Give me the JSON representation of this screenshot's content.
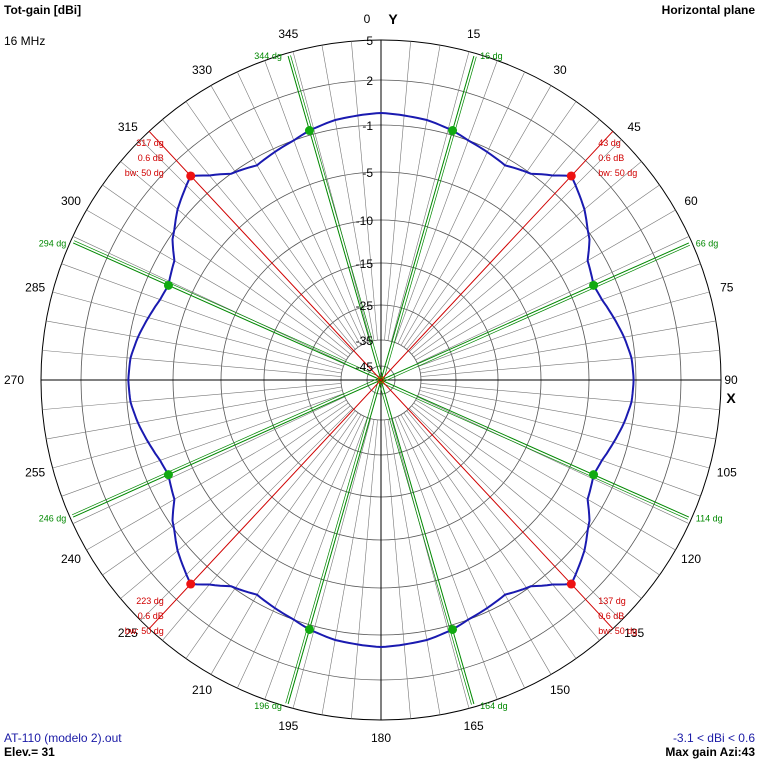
{
  "header": {
    "title_left": "Tot-gain [dBi]",
    "frequency": "16 MHz",
    "title_right": "Horizontal plane"
  },
  "footer": {
    "file": "AT-110 (modelo 2).out",
    "elevation": "Elev.= 31",
    "range": "-3.1 < dBi < 0.6",
    "max_gain": "Max gain Azi:43"
  },
  "chart_data": {
    "type": "polar",
    "title": "Tot-gain [dBi]",
    "subtitle": "Horizontal plane",
    "axis_labels": {
      "vertical": "Y",
      "horizontal": "X"
    },
    "angle_labels": [
      "0",
      "15",
      "30",
      "45",
      "60",
      "75",
      "90",
      "105",
      "120",
      "135",
      "150",
      "165",
      "180",
      "195",
      "210",
      "225",
      "240",
      "255",
      "270",
      "285",
      "300",
      "315",
      "330",
      "345"
    ],
    "radial_ticks": [
      {
        "label": "5",
        "value": 5
      },
      {
        "label": "2",
        "value": 2
      },
      {
        "label": "-1",
        "value": -1
      },
      {
        "label": "-5",
        "value": -5
      },
      {
        "label": "-10",
        "value": -10
      },
      {
        "label": "-15",
        "value": -15
      },
      {
        "label": "-25",
        "value": -25
      },
      {
        "label": "-35",
        "value": -35
      },
      {
        "label": "-45",
        "value": -45
      }
    ],
    "radial_range": [
      -45,
      5
    ],
    "series_color": "#1a1ab0",
    "pattern": {
      "azimuth_deg": [
        0,
        10,
        16,
        20,
        30,
        36,
        40,
        43,
        50,
        56,
        60,
        66,
        70,
        75,
        80,
        85,
        90
      ],
      "gain_dbi": [
        -0.2,
        -0.4,
        -0.7,
        -1.0,
        -1.6,
        -1.0,
        -0.2,
        0.6,
        -0.3,
        -1.3,
        -2.4,
        -2.9,
        -2.7,
        -2.2,
        -1.7,
        -1.3,
        -1.2
      ],
      "symmetry": "mirrored about X and Y axes"
    },
    "beamwidth_markers": {
      "color": "#d00000",
      "angles_deg": [
        43,
        137,
        223,
        317
      ],
      "labels": [
        {
          "angle": "43 dg",
          "gain": "0.6 dB",
          "bw": "bw: 50 dg"
        },
        {
          "angle": "137 dg",
          "gain": "0.6 dB",
          "bw": "bw: 50 dg"
        },
        {
          "angle": "223 dg",
          "gain": "0.6 dB",
          "bw": "bw: 50 dg"
        },
        {
          "angle": "317 dg",
          "gain": "0.6 dB",
          "bw": "bw: 50 dg"
        }
      ]
    },
    "half_power_markers": {
      "color": "#008800",
      "angles_deg": [
        16,
        66,
        114,
        164,
        196,
        246,
        294,
        344
      ],
      "labels": [
        "16 dg",
        "66 dg",
        "114 dg",
        "164 dg",
        "196 dg",
        "246 dg",
        "294 dg",
        "344 dg"
      ]
    }
  }
}
